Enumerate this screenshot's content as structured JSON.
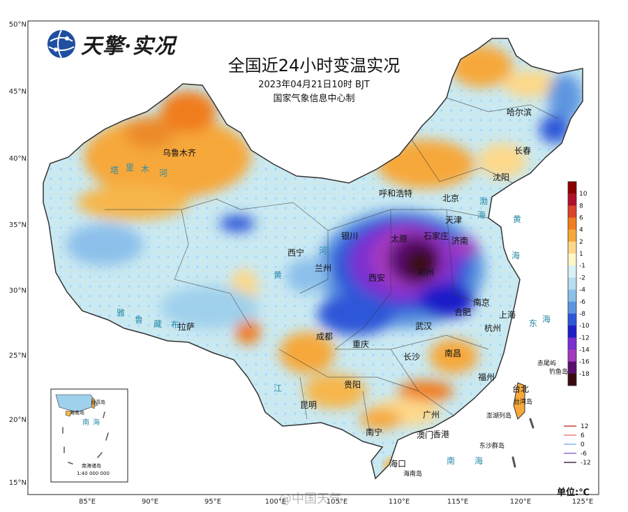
{
  "logo": {
    "brand": "天擎·实况"
  },
  "title": "全国近24小时变温实况",
  "subtitle": "2023年04月21日10时  BJT",
  "issuer": "国家气象信息中心制",
  "unit": "单位:℃",
  "watermark": "@中国天气",
  "axes": {
    "lat_labels": [
      "50°N",
      "45°N",
      "40°N",
      "35°N",
      "30°N",
      "25°N",
      "20°N",
      "15°N"
    ],
    "lon_labels": [
      "85°E",
      "90°E",
      "95°E",
      "100°E",
      "105°E",
      "110°E",
      "115°E",
      "120°E",
      "125°E"
    ]
  },
  "colorbar": {
    "labels": [
      "10",
      "8",
      "6",
      "4",
      "2",
      "1",
      "-1",
      "-2",
      "-4",
      "-6",
      "-8",
      "-10",
      "-12",
      "-14",
      "-16",
      "-18"
    ],
    "colors": [
      "#8b0000",
      "#b0102a",
      "#d9442a",
      "#f07d1e",
      "#f6a83b",
      "#fdd88a",
      "#fff6c8",
      "#d9f2f6",
      "#b6ddf0",
      "#8cc0ea",
      "#5d96e0",
      "#2f56d8",
      "#1e1ec8",
      "#7a2fd0",
      "#a33bc0",
      "#5a0f6f",
      "#3a0a10"
    ]
  },
  "legend_lines": [
    {
      "label": "12",
      "color": "#d87070"
    },
    {
      "label": "6",
      "color": "#f0a0a0"
    },
    {
      "label": "0",
      "color": "#a0c8f0"
    },
    {
      "label": "-6",
      "color": "#b090e0"
    },
    {
      "label": "-12",
      "color": "#706080"
    }
  ],
  "cities": [
    "乌鲁木齐",
    "哈尔滨",
    "长春",
    "沈阳",
    "北京",
    "天津",
    "呼和浩特",
    "银川",
    "太原",
    "石家庄",
    "济南",
    "西宁",
    "兰州",
    "西安",
    "郑州",
    "合肥",
    "南京",
    "上海",
    "杭州",
    "武汉",
    "成都",
    "重庆",
    "拉萨",
    "长沙",
    "南昌",
    "福州",
    "贵阳",
    "昆明",
    "南宁",
    "广州",
    "澳门",
    "香港",
    "海口",
    "台北"
  ],
  "water_labels": [
    "塔",
    "里",
    "木",
    "河",
    "雅",
    "鲁",
    "藏",
    "布",
    "渤",
    "海",
    "黄",
    "海",
    "东",
    "海",
    "南",
    "海",
    "江",
    "河",
    "黄"
  ],
  "islands": [
    "赤尾屿",
    "钓鱼岛",
    "澎湖列岛",
    "东沙群岛",
    "海南岛",
    "台湾岛"
  ],
  "inset": {
    "labels": [
      "台湾岛",
      "海南岛",
      "南",
      "海",
      "南海诸岛"
    ],
    "scale": "1:40 000 000"
  }
}
